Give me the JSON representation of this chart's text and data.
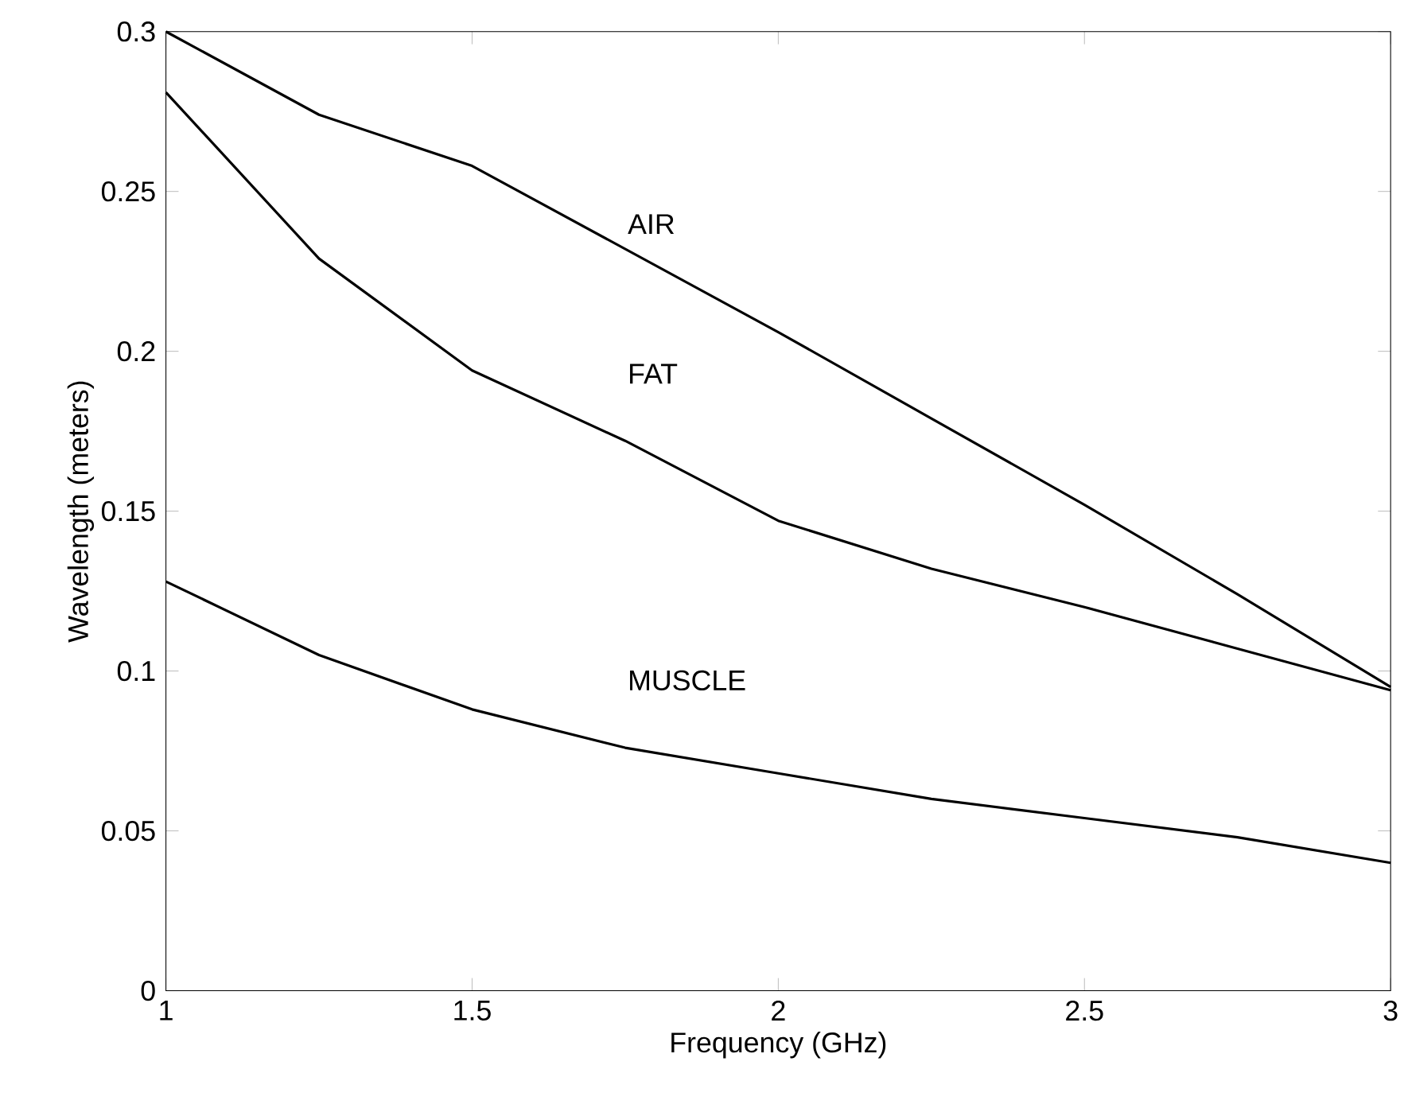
{
  "chart_data": {
    "type": "line",
    "xlabel": "Frequency (GHz)",
    "ylabel": "Wavelength (meters)",
    "xlim": [
      1,
      3
    ],
    "ylim": [
      0,
      0.3
    ],
    "xticks": [
      1,
      1.5,
      2,
      2.5,
      3
    ],
    "yticks": [
      0,
      0.05,
      0.1,
      0.15,
      0.2,
      0.25,
      0.3
    ],
    "x": [
      1,
      1.25,
      1.5,
      1.75,
      2,
      2.25,
      2.5,
      2.75,
      3
    ],
    "series": [
      {
        "color": "#000000",
        "values": [
          0.3,
          0.274,
          0.258,
          0.232,
          0.206,
          0.179,
          0.152,
          0.124,
          0.095
        ]
      },
      {
        "color": "#000000",
        "values": [
          0.281,
          0.229,
          0.194,
          0.172,
          0.147,
          0.132,
          0.12,
          0.107,
          0.094
        ]
      },
      {
        "color": "#000000",
        "values": [
          0.128,
          0.105,
          0.088,
          0.076,
          0.068,
          0.06,
          0.054,
          0.048,
          0.04
        ]
      }
    ],
    "annotations": [
      "AIR",
      "FAT",
      "MUSCLE"
    ]
  }
}
